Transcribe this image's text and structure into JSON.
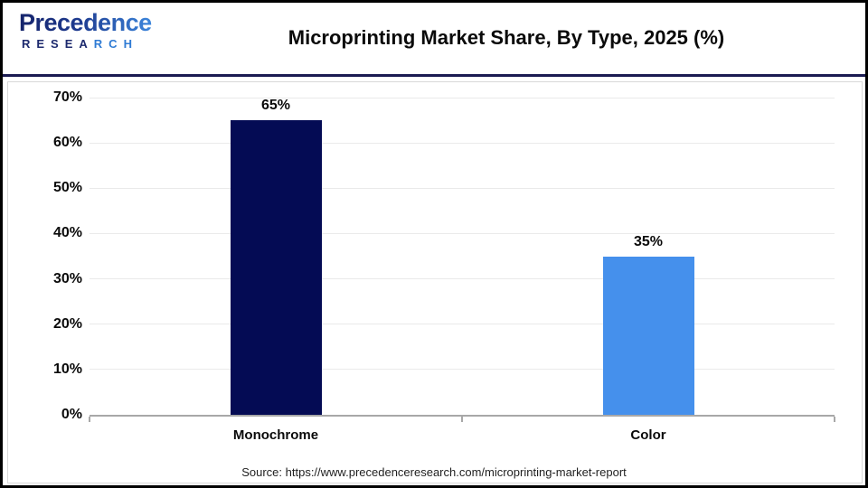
{
  "header": {
    "logo": {
      "name": "precedence-research-logo",
      "word1": "Precedence",
      "word2_part1": "RESEA",
      "word2_part2": "RCH"
    },
    "title": "Microprinting Market Share, By Type, 2025 (%)"
  },
  "chart_data": {
    "type": "bar",
    "title": "Microprinting Market Share, By Type, 2025 (%)",
    "categories": [
      "Monochrome",
      "Color"
    ],
    "values": [
      65,
      35
    ],
    "value_labels": [
      "65%",
      "35%"
    ],
    "bar_colors": [
      "#040B54",
      "#4590EC"
    ],
    "xlabel": "",
    "ylabel": "",
    "ylim": [
      0,
      70
    ],
    "ytick_step": 10,
    "yticks": [
      {
        "value": 0,
        "label": "0%"
      },
      {
        "value": 10,
        "label": "10%"
      },
      {
        "value": 20,
        "label": "20%"
      },
      {
        "value": 30,
        "label": "30%"
      },
      {
        "value": 40,
        "label": "40%"
      },
      {
        "value": 50,
        "label": "50%"
      },
      {
        "value": 60,
        "label": "60%"
      },
      {
        "value": 70,
        "label": "70%"
      }
    ],
    "grid": true,
    "legend": false
  },
  "footer": {
    "source": "Source: https://www.precedenceresearch.com/microprinting-market-report"
  },
  "colors": {
    "separator_navy": "#1B1B52",
    "outer_border": "#000000",
    "panel_border": "#D8D8D8",
    "gridline": "#EAEAEA",
    "axis": "#A8A8A8",
    "bar_monochrome": "#040B54",
    "bar_color": "#4590EC"
  }
}
